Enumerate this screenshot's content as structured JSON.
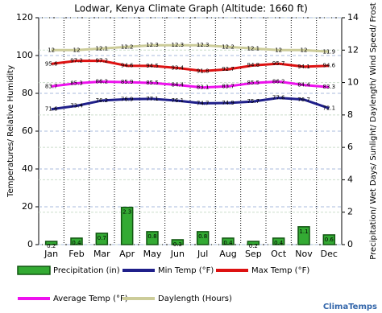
{
  "chart_data": {
    "type": "combo",
    "title": "Lodwar, Kenya Climate Graph (Altitude: 1660 ft)",
    "y_label": "Temperatures/ Relative Humidity",
    "y2_label": "Precipitation/ Wet Days/ Sunlight/ Daylength/ Wind Speed/ Frost",
    "categories": [
      "Jan",
      "Feb",
      "Mar",
      "Apr",
      "May",
      "Jun",
      "Jul",
      "Aug",
      "Sep",
      "Oct",
      "Nov",
      "Dec"
    ],
    "ylim": [
      0,
      120
    ],
    "yticks": [
      0,
      20,
      40,
      60,
      80,
      100,
      120
    ],
    "y2lim": [
      0,
      14
    ],
    "y2ticks": [
      0,
      2,
      4,
      6,
      8,
      10,
      12,
      14
    ],
    "grid": true,
    "series": [
      {
        "name": "Precipitation (in)",
        "kind": "bar",
        "axis": "y2",
        "color": "#33aa33",
        "values": [
          0.2,
          0.4,
          0.7,
          2.3,
          0.8,
          0.3,
          0.8,
          0.4,
          0.2,
          0.4,
          1.1,
          0.6
        ]
      },
      {
        "name": "Min Temp (°F)",
        "kind": "line",
        "color": "#1f1f8a",
        "values": [
          71.6,
          73.4,
          76.2,
          76.9,
          77.1,
          76.1,
          74.7,
          74.9,
          75.7,
          77.6,
          76.7,
          72.1
        ]
      },
      {
        "name": "Max Temp (°F)",
        "kind": "line",
        "color": "#dd1111",
        "values": [
          95.6,
          97.2,
          97.2,
          94.6,
          94.5,
          93.4,
          91.8,
          92.7,
          94.8,
          95.7,
          94.1,
          94.6
        ]
      },
      {
        "name": "Average Temp (°F)",
        "kind": "line",
        "color": "#ee11ee",
        "values": [
          83.7,
          85.3,
          86.2,
          85.9,
          85.5,
          84.4,
          83.1,
          83.7,
          85.5,
          86.2,
          84.4,
          83.3
        ]
      },
      {
        "name": "Daylength (Hours)",
        "kind": "line",
        "axis": "y2",
        "color": "#cccc99",
        "values": [
          12.0,
          12.0,
          12.1,
          12.2,
          12.3,
          12.3,
          12.3,
          12.2,
          12.1,
          12.0,
          12.0,
          11.9
        ]
      }
    ],
    "watermark": "ClimaTemps"
  }
}
